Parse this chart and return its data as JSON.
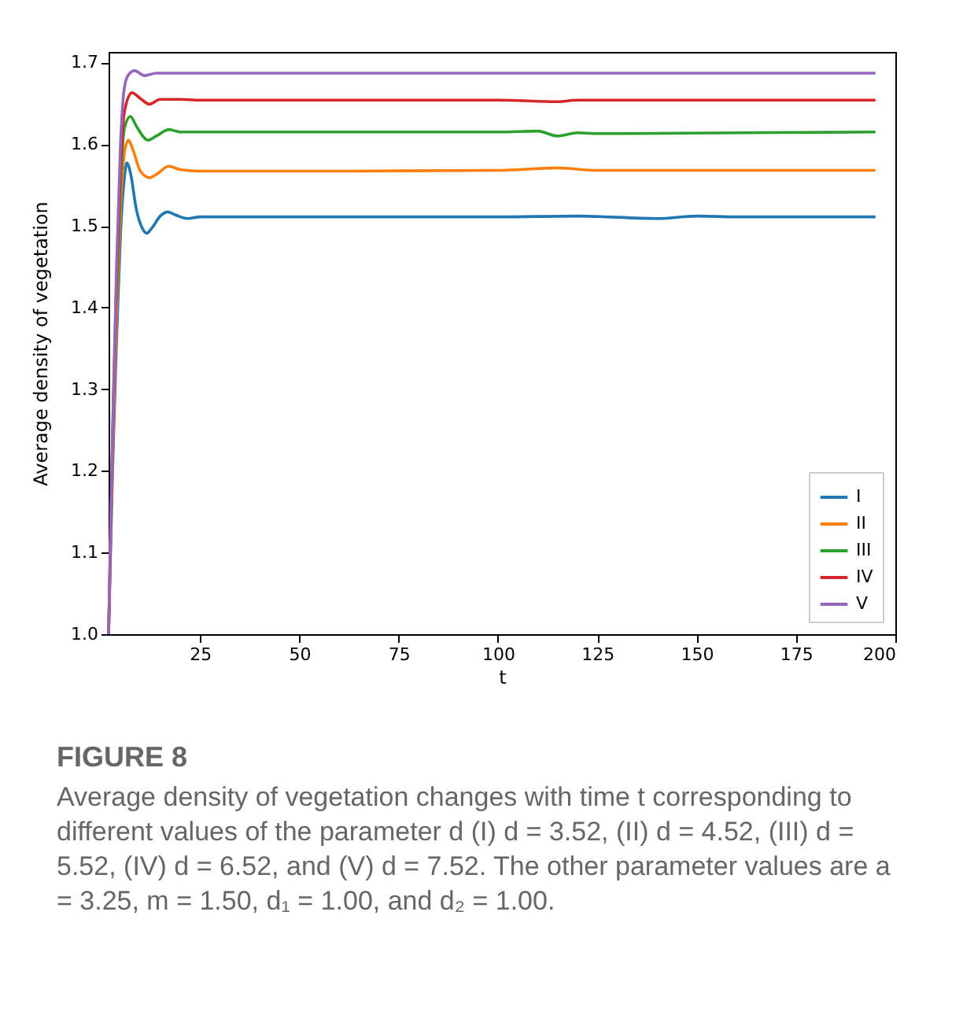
{
  "chart_data": {
    "type": "line",
    "xlabel": "t",
    "ylabel": "Average density of vegetation",
    "xlim": [
      2,
      200
    ],
    "ylim": [
      1.0,
      1.713
    ],
    "xticks": [
      25,
      50,
      75,
      100,
      125,
      150,
      175,
      200
    ],
    "yticks": [
      {
        "value": 1.0,
        "label": "1.0"
      },
      1.1,
      1.2,
      1.3,
      1.4,
      1.5,
      1.6,
      {
        "value": 1.7,
        "label": "1.7"
      }
    ],
    "grid": false,
    "legend": "bottom right",
    "line_style": "solid",
    "series": [
      {
        "name": "I",
        "color": "#1f77b4",
        "x": [
          2,
          3,
          4,
          5,
          6,
          6.6,
          7.5,
          9,
          10.5,
          11.6,
          13,
          15,
          16.9,
          19,
          21.8,
          25,
          50,
          100,
          120,
          140,
          150,
          160,
          195
        ],
        "values": [
          1.0,
          1.2,
          1.36,
          1.49,
          1.56,
          1.577,
          1.565,
          1.52,
          1.497,
          1.491,
          1.498,
          1.512,
          1.517,
          1.513,
          1.509,
          1.511,
          1.511,
          1.511,
          1.512,
          1.509,
          1.512,
          1.511,
          1.511
        ]
      },
      {
        "name": "II",
        "color": "#ff7f0e",
        "x": [
          2,
          3,
          4,
          5,
          6,
          7,
          8,
          10,
          12.3,
          14,
          17.2,
          20,
          25,
          50,
          100,
          115,
          125,
          195
        ],
        "values": [
          1.0,
          1.22,
          1.39,
          1.52,
          1.59,
          1.605,
          1.595,
          1.567,
          1.559,
          1.563,
          1.573,
          1.569,
          1.567,
          1.567,
          1.568,
          1.571,
          1.568,
          1.568
        ]
      },
      {
        "name": "III",
        "color": "#2ca02c",
        "x": [
          4,
          5,
          6,
          7.5,
          9,
          11.9,
          14,
          17.2,
          20,
          25,
          50,
          100,
          110,
          115,
          120,
          125,
          195
        ],
        "values": [
          1.41,
          1.55,
          1.62,
          1.634,
          1.622,
          1.605,
          1.61,
          1.618,
          1.615,
          1.615,
          1.615,
          1.615,
          1.616,
          1.61,
          1.614,
          1.613,
          1.615
        ]
      },
      {
        "name": "IV",
        "color": "#d62728",
        "x": [
          2,
          3,
          4,
          5,
          6,
          7.9,
          10,
          12.3,
          15,
          20,
          25,
          100,
          115,
          120,
          195
        ],
        "values": [
          1.0,
          1.24,
          1.43,
          1.57,
          1.64,
          1.663,
          1.656,
          1.649,
          1.655,
          1.655,
          1.654,
          1.654,
          1.652,
          1.654,
          1.654
        ]
      },
      {
        "name": "V",
        "color": "#9467bd",
        "x": [
          2,
          3,
          4,
          5,
          6,
          7,
          8.6,
          11,
          14,
          20,
          195
        ],
        "values": [
          1.0,
          1.25,
          1.45,
          1.6,
          1.67,
          1.685,
          1.69,
          1.684,
          1.687,
          1.687,
          1.687
        ]
      }
    ],
    "annotations": [
      "FIGURE 8",
      "Average density of vegetation changes with time t corresponding to different values of the parameter d (I) d = 3.52, (II) d = 4.52, (III) d = 5.52, (IV) d = 6.52, and (V) d = 7.52. The other parameter values are a = 3.25, m = 1.50, d₁ = 1.00, and d₂ = 1.00."
    ]
  }
}
